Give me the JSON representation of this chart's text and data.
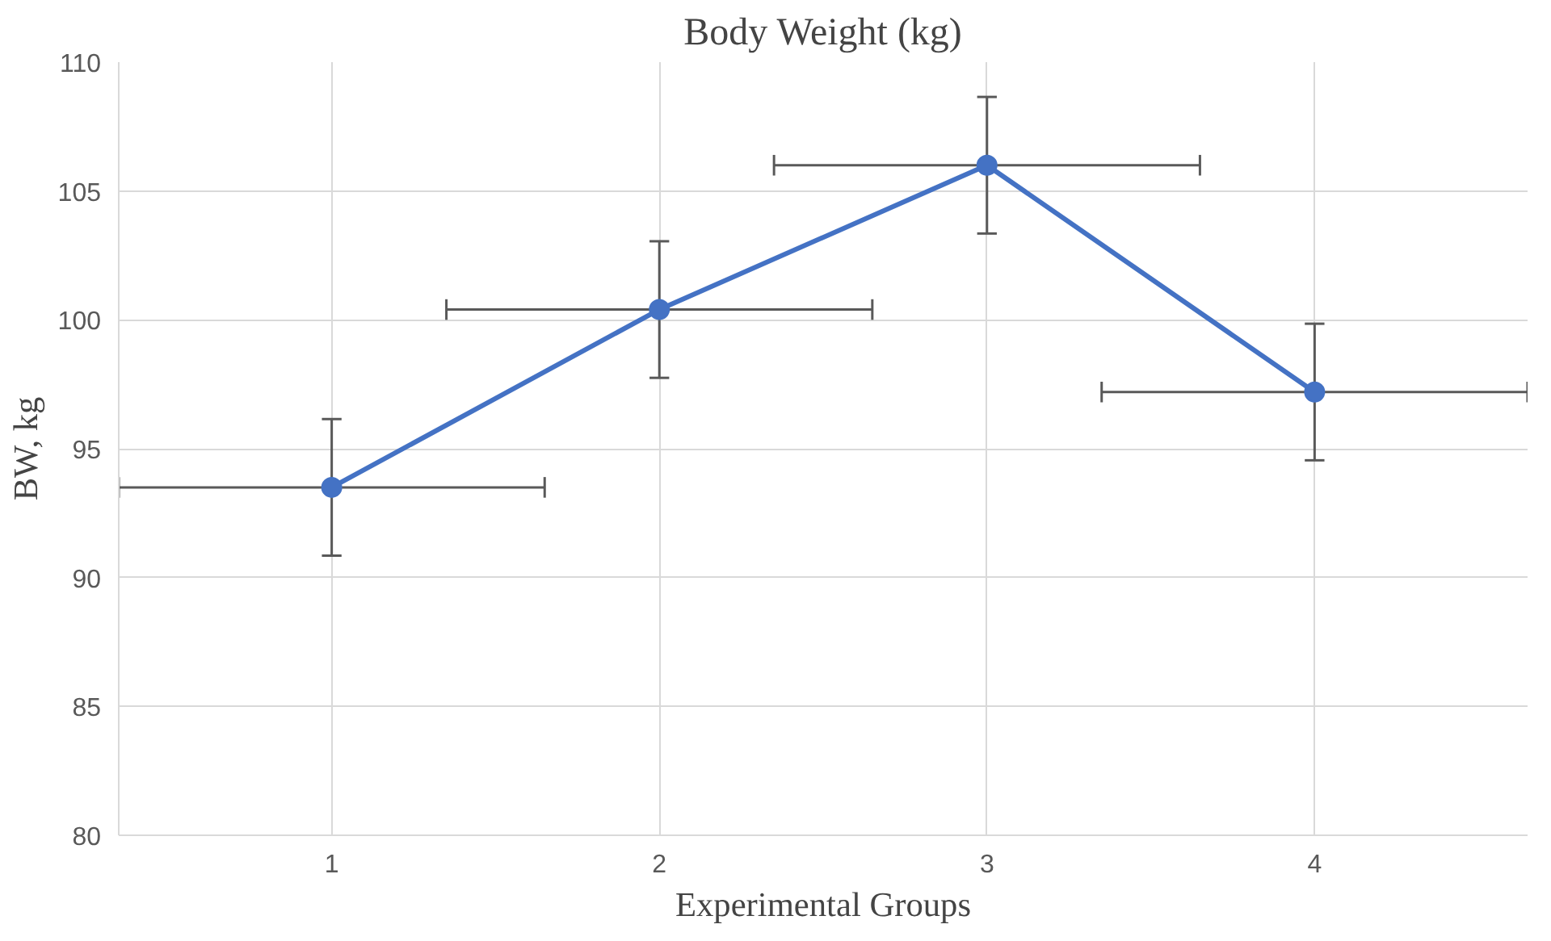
{
  "chart_data": {
    "type": "line",
    "title": "Body Weight (kg)",
    "xlabel": "Experimental Groups",
    "ylabel": "BW, kg",
    "x": [
      1,
      2,
      3,
      4
    ],
    "series": [
      {
        "color": "#4472c4",
        "values": [
          93.5,
          100.4,
          106.0,
          97.2
        ],
        "errors": [
          2.65,
          2.65,
          2.65,
          2.65
        ],
        "xerrors": [
          0.65,
          0.65,
          0.65,
          0.65
        ]
      }
    ],
    "xlim": [
      0.35,
      4.65
    ],
    "xticks": [
      1,
      2,
      3,
      4
    ],
    "ylim": [
      80,
      110
    ],
    "yticks": [
      80,
      85,
      90,
      95,
      100,
      105,
      110
    ],
    "grid": true,
    "marker": "circle",
    "line_style": "solid"
  }
}
